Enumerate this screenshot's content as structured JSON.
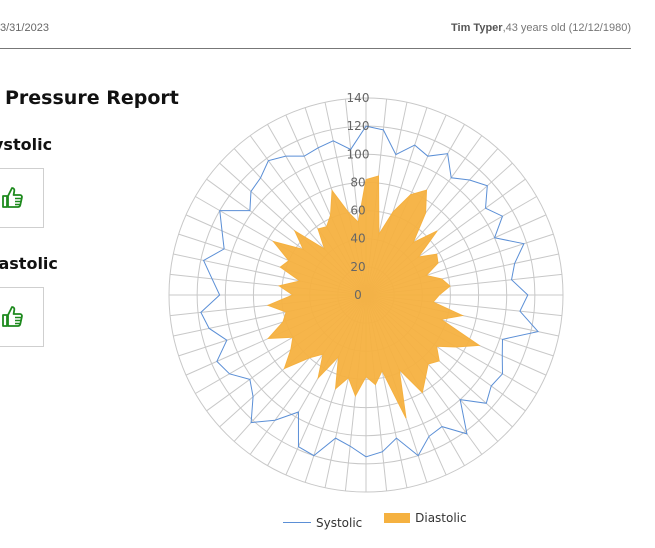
{
  "header": {
    "date": "3/31/2023",
    "patient_name": "Tim Typer",
    "patient_details": ",43 years old (12/12/1980)"
  },
  "report": {
    "title": "Pressure Report",
    "systolic_label": "ystolic",
    "systolic_status_icon": "thumbs-up-icon",
    "diastolic_label": "iastolic",
    "diastolic_status_icon": "thumbs-up-icon"
  },
  "colors": {
    "systolic": "#5b8fd6",
    "diastolic": "#f5b140",
    "grid": "#c8c8c8",
    "icon": "#1e8a1e"
  },
  "chart_data": {
    "type": "radar",
    "axis_ticks": [
      "0",
      "20",
      "40",
      "60",
      "80",
      "100",
      "120",
      "140"
    ],
    "rlim": [
      0,
      140
    ],
    "grid": true,
    "legend_position": "bottom",
    "series": [
      {
        "name": "Systolic",
        "style": "line",
        "values": [
          120,
          118,
          102,
          112,
          108,
          116,
          103,
          110,
          116,
          105,
          112,
          100,
          118,
          108,
          104,
          115,
          110,
          125,
          102,
          106,
          112,
          110,
          115,
          100,
          122,
          108,
          110,
          120,
          104,
          112,
          115,
          108,
          104,
          120,
          118,
          96,
          110,
          122,
          108,
          102,
          112,
          116,
          104,
          114,
          118,
          104,
          110,
          118,
          106,
          112,
          120,
          102,
          110,
          112,
          118,
          114,
          108,
          110,
          112,
          104
        ]
      },
      {
        "name": "Diastolic",
        "style": "area",
        "values": [
          82,
          85,
          44,
          62,
          78,
          86,
          72,
          50,
          68,
          46,
          58,
          56,
          45,
          55,
          60,
          52,
          48,
          70,
          56,
          88,
          74,
          62,
          70,
          66,
          72,
          80,
          58,
          92,
          55,
          64,
          58,
          72,
          60,
          70,
          48,
          68,
          52,
          60,
          78,
          66,
          60,
          76,
          62,
          58,
          70,
          52,
          62,
          48,
          64,
          60,
          76,
          55,
          68,
          44,
          58,
          56,
          62,
          78,
          60,
          52
        ]
      }
    ]
  }
}
